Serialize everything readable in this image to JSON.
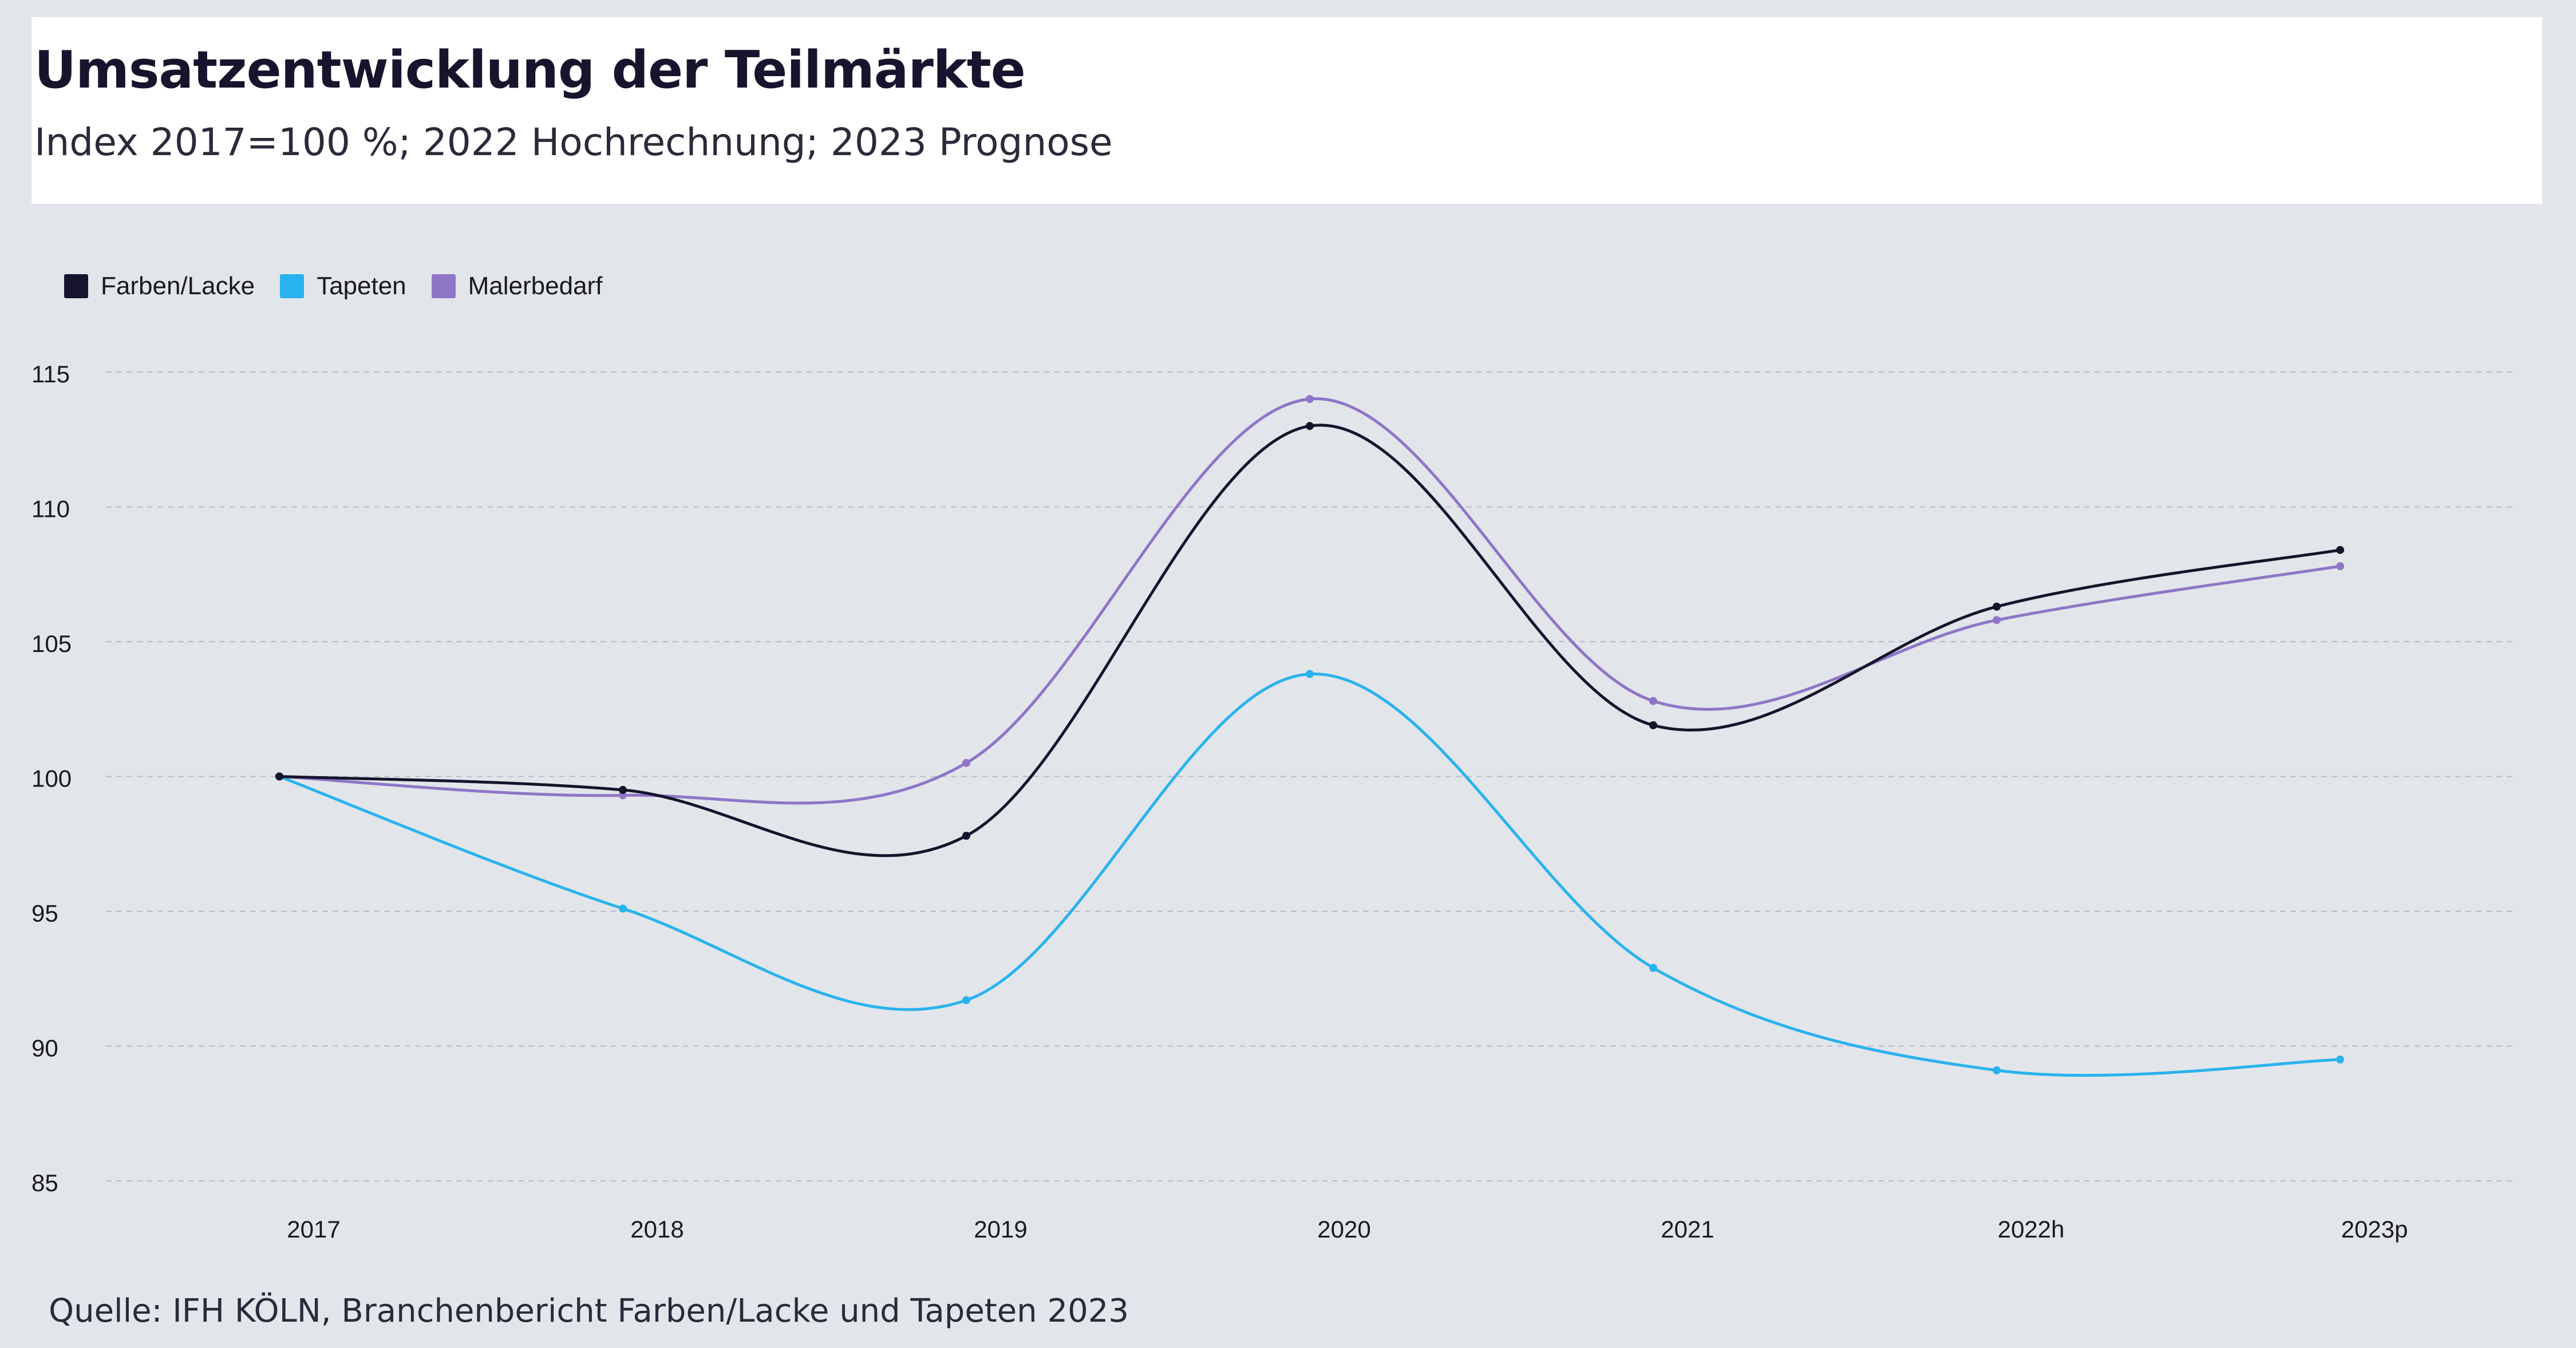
{
  "header": {
    "title": "Umsatzentwicklung der Teilmärkte",
    "subtitle": "Index 2017=100 %; 2022 Hochrechnung; 2023 Prognose"
  },
  "chart_data": {
    "type": "line",
    "x": [
      "2017",
      "2018",
      "2019",
      "2020",
      "2021",
      "2022h",
      "2023p"
    ],
    "ylim": [
      85,
      115
    ],
    "yticks": [
      "85",
      "90",
      "95",
      "100",
      "105",
      "110",
      "115"
    ],
    "grid": true,
    "legend_position": "top-left",
    "series": [
      {
        "name": "Farben/Lacke",
        "color": "#15142c",
        "values": [
          100,
          99.5,
          97.8,
          113.0,
          101.9,
          106.3,
          108.4
        ]
      },
      {
        "name": "Tapeten",
        "color": "#29b3ee",
        "values": [
          100,
          95.1,
          91.7,
          103.8,
          92.9,
          89.1,
          89.5
        ]
      },
      {
        "name": "Malerbedarf",
        "color": "#8f75c6",
        "values": [
          100,
          99.3,
          100.5,
          114.0,
          102.8,
          105.8,
          107.8
        ]
      }
    ]
  },
  "footer": {
    "source": "Quelle: IFH KÖLN, Branchenbericht Farben/Lacke und Tapeten 2023"
  }
}
